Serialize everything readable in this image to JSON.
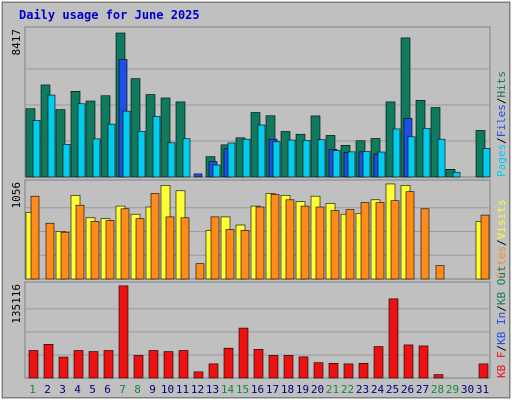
{
  "colors": {
    "background": "#c0c0c0",
    "panel": "#c0c0c0",
    "grid": "#9a9a9a",
    "title": "#0000cc",
    "hits": "#107a5e",
    "files": "#1e4fe6",
    "pages": "#00ccee",
    "visits": "#ffff33",
    "sites": "#ff8c1a",
    "kb_in": "#107a5e",
    "kb_out": "#1e4fe6",
    "kb_f": "#ee1111",
    "weekend_label": "#108a3a",
    "weekday_label": "#000080"
  },
  "chart_data": {
    "type": "bar",
    "title": "Daily usage for June 2025",
    "categories": [
      "1",
      "2",
      "3",
      "4",
      "5",
      "6",
      "7",
      "8",
      "9",
      "10",
      "11",
      "12",
      "13",
      "14",
      "15",
      "16",
      "17",
      "18",
      "19",
      "20",
      "21",
      "22",
      "23",
      "24",
      "25",
      "26",
      "27",
      "28",
      "29",
      "30",
      "31"
    ],
    "weekend_days": [
      "1",
      "7",
      "8",
      "14",
      "15",
      "21",
      "22",
      "28",
      "29"
    ],
    "panels": [
      {
        "name": "hits-files-pages",
        "max_label": "8417",
        "ymax": 8417,
        "legend": [
          {
            "text": "Pages",
            "color": "#00ccee"
          },
          {
            "text": "/",
            "color": "#000000"
          },
          {
            "text": "Files",
            "color": "#1e4fe6"
          },
          {
            "text": "/",
            "color": "#000000"
          },
          {
            "text": "Hits",
            "color": "#107a5e"
          }
        ],
        "series": [
          {
            "name": "Hits",
            "color": "#107a5e",
            "values": [
              3990,
              5380,
              3940,
              5010,
              4440,
              4750,
              8417,
              5750,
              4820,
              4620,
              4390,
              0,
              1190,
              1880,
              2290,
              3770,
              3580,
              2660,
              2500,
              3570,
              2430,
              1850,
              2120,
              2250,
              4390,
              8130,
              4480,
              4060,
              450,
              0,
              2720
            ]
          },
          {
            "name": "Files",
            "color": "#1e4fe6",
            "values": [
              0,
              0,
              0,
              0,
              0,
              0,
              6870,
              0,
              0,
              0,
              0,
              180,
              900,
              1650,
              0,
              0,
              2210,
              0,
              0,
              0,
              1620,
              1440,
              1470,
              1340,
              0,
              3430,
              0,
              0,
              0,
              0,
              0
            ]
          },
          {
            "name": "Pages",
            "color": "#00ccee",
            "values": [
              3300,
              4790,
              1910,
              4280,
              2230,
              3090,
              3850,
              2670,
              3540,
              2000,
              2240,
              0,
              700,
              1990,
              2210,
              3040,
              2060,
              2160,
              2140,
              2180,
              1550,
              1470,
              1490,
              1460,
              2810,
              2350,
              2840,
              2210,
              280,
              0,
              1670
            ]
          }
        ]
      },
      {
        "name": "visits-sites",
        "max_label": "1056",
        "ymax": 1056,
        "legend": [
          {
            "text": "Sites",
            "color": "#ff8c1a"
          },
          {
            "text": "/",
            "color": "#000000"
          },
          {
            "text": "Visits",
            "color": "#ffff33"
          }
        ],
        "series": [
          {
            "name": "Visits",
            "color": "#ffff33",
            "values": [
              740,
              0,
              530,
              930,
              680,
              670,
              810,
              720,
              800,
              1040,
              980,
              0,
              540,
              690,
              600,
              810,
              950,
              930,
              860,
              920,
              840,
              720,
              730,
              880,
              1056,
              1040,
              0,
              0,
              0,
              0,
              640
            ]
          },
          {
            "name": "Sites",
            "color": "#ff8c1a",
            "values": [
              920,
              620,
              520,
              820,
              640,
              650,
              780,
              670,
              950,
              690,
              680,
              170,
              690,
              550,
              540,
              800,
              940,
              880,
              810,
              800,
              760,
              770,
              850,
              850,
              870,
              970,
              780,
              150,
              0,
              0,
              710
            ]
          }
        ]
      },
      {
        "name": "kb",
        "max_label": "135116",
        "ymax": 135116,
        "legend": [
          {
            "text": "KB F",
            "color": "#ee1111"
          },
          {
            "text": "/",
            "color": "#000000"
          },
          {
            "text": "KB In",
            "color": "#1e4fe6"
          },
          {
            "text": "/",
            "color": "#000000"
          },
          {
            "text": "KB Out",
            "color": "#107a5e"
          }
        ],
        "series": [
          {
            "name": "KB F",
            "color": "#ee1111",
            "values": [
              40330,
              49380,
              30700,
              40330,
              38780,
              40330,
              135116,
              33100,
              40330,
              38780,
              40330,
              9000,
              20700,
              43700,
              73200,
              42000,
              33100,
              33100,
              31000,
              22500,
              21500,
              20700,
              21500,
              46100,
              116000,
              48500,
              47000,
              5000,
              0,
              0,
              20700
            ]
          }
        ]
      }
    ]
  }
}
